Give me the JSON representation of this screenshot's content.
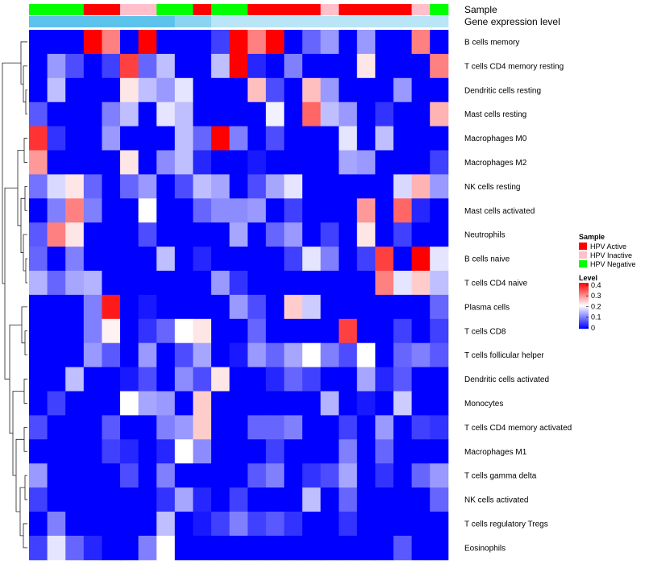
{
  "chart_data": {
    "type": "heatmap",
    "title": "",
    "row_labels": [
      "B cells memory",
      "T cells CD4 memory resting",
      "Dendritic cells resting",
      "Mast cells resting",
      "Macrophages M0",
      "Macrophages M2",
      "NK cells resting",
      "Mast cells activated",
      "Neutrophils",
      "B cells naive",
      "T cells CD4 naive",
      "Plasma cells",
      "T cells CD8",
      "T cells follicular helper",
      "Dendritic cells activated",
      "Monocytes",
      "T cells CD4 memory activated",
      "Macrophages M1",
      "T cells gamma delta",
      "NK cells activated",
      "T cells regulatory  Tregs",
      "Eosinophils"
    ],
    "n_columns": 23,
    "annotations": {
      "sample_label": "Sample",
      "gene_expression_label": "Gene expression level",
      "sample": [
        "HPV Negative",
        "HPV Negative",
        "HPV Negative",
        "HPV Active",
        "HPV Active",
        "HPV Inactive",
        "HPV Inactive",
        "HPV Negative",
        "HPV Negative",
        "HPV Active",
        "HPV Negative",
        "HPV Negative",
        "HPV Active",
        "HPV Active",
        "HPV Active",
        "HPV Active",
        "HPV Inactive",
        "HPV Active",
        "HPV Active",
        "HPV Active",
        "HPV Active",
        "HPV Inactive",
        "HPV Negative"
      ],
      "gene_expression": [
        0.3,
        0.3,
        0.3,
        0.3,
        0.3,
        0.3,
        0.3,
        0.3,
        0.2,
        0.2,
        0.1,
        0.1,
        0.1,
        0.1,
        0.1,
        0.1,
        0.1,
        0.1,
        0.1,
        0.1,
        0.1,
        0.1,
        0.1
      ]
    },
    "values": [
      [
        0.0,
        0.0,
        0.0,
        0.4,
        0.3,
        0.0,
        0.4,
        0.0,
        0.0,
        0.0,
        0.05,
        0.4,
        0.3,
        0.4,
        0.0,
        0.08,
        0.12,
        0.0,
        0.12,
        0.0,
        0.0,
        0.3,
        0.0
      ],
      [
        0.0,
        0.12,
        0.06,
        0.0,
        0.05,
        0.35,
        0.08,
        0.15,
        0.0,
        0.0,
        0.15,
        0.4,
        0.03,
        0.0,
        0.1,
        0.0,
        0.0,
        0.0,
        0.22,
        0.0,
        0.0,
        0.0,
        0.3
      ],
      [
        0.0,
        0.15,
        0.0,
        0.0,
        0.0,
        0.22,
        0.15,
        0.12,
        0.18,
        0.0,
        0.0,
        0.0,
        0.25,
        0.06,
        0.0,
        0.25,
        0.12,
        0.0,
        0.0,
        0.0,
        0.12,
        0.0,
        0.0
      ],
      [
        0.07,
        0.0,
        0.0,
        0.0,
        0.1,
        0.15,
        0.0,
        0.18,
        0.15,
        0.0,
        0.0,
        0.0,
        0.0,
        0.19,
        0.0,
        0.32,
        0.15,
        0.12,
        0.0,
        0.04,
        0.0,
        0.0,
        0.26
      ],
      [
        0.36,
        0.04,
        0.0,
        0.0,
        0.12,
        0.0,
        0.0,
        0.0,
        0.15,
        0.08,
        0.4,
        0.1,
        0.0,
        0.06,
        0.0,
        0.0,
        0.0,
        0.18,
        0.0,
        0.15,
        0.0,
        0.0,
        0.0
      ],
      [
        0.28,
        0.0,
        0.0,
        0.0,
        0.0,
        0.22,
        0.0,
        0.11,
        0.15,
        0.03,
        0.0,
        0.0,
        0.02,
        0.0,
        0.0,
        0.0,
        0.0,
        0.13,
        0.12,
        0.0,
        0.0,
        0.0,
        0.05
      ],
      [
        0.09,
        0.17,
        0.22,
        0.08,
        0.0,
        0.08,
        0.12,
        0.0,
        0.06,
        0.15,
        0.13,
        0.0,
        0.06,
        0.13,
        0.18,
        0.0,
        0.0,
        0.0,
        0.0,
        0.0,
        0.17,
        0.26,
        0.12
      ],
      [
        0.0,
        0.1,
        0.3,
        0.1,
        0.0,
        0.0,
        0.2,
        0.0,
        0.0,
        0.08,
        0.11,
        0.11,
        0.12,
        0.0,
        0.05,
        0.0,
        0.0,
        0.0,
        0.28,
        0.0,
        0.32,
        0.03,
        0.0
      ],
      [
        0.07,
        0.3,
        0.22,
        0.0,
        0.0,
        0.0,
        0.06,
        0.0,
        0.0,
        0.0,
        0.0,
        0.13,
        0.0,
        0.08,
        0.12,
        0.0,
        0.05,
        0.0,
        0.22,
        0.0,
        0.05,
        0.0,
        0.0
      ],
      [
        0.08,
        0.0,
        0.1,
        0.0,
        0.0,
        0.0,
        0.0,
        0.15,
        0.0,
        0.03,
        0.0,
        0.0,
        0.0,
        0.0,
        0.05,
        0.18,
        0.1,
        0.0,
        0.05,
        0.35,
        0.0,
        0.4,
        0.18
      ],
      [
        0.14,
        0.08,
        0.13,
        0.14,
        0.0,
        0.0,
        0.0,
        0.0,
        0.0,
        0.0,
        0.12,
        0.04,
        0.0,
        0.0,
        0.0,
        0.0,
        0.0,
        0.0,
        0.0,
        0.3,
        0.18,
        0.24,
        0.15
      ],
      [
        0.0,
        0.0,
        0.0,
        0.1,
        0.38,
        0.0,
        0.02,
        0.0,
        0.0,
        0.0,
        0.0,
        0.12,
        0.06,
        0.0,
        0.24,
        0.16,
        0.0,
        0.0,
        0.0,
        0.0,
        0.0,
        0.0,
        0.08
      ],
      [
        0.0,
        0.0,
        0.0,
        0.1,
        0.21,
        0.0,
        0.04,
        0.08,
        0.2,
        0.22,
        0.0,
        0.0,
        0.08,
        0.0,
        0.0,
        0.0,
        0.0,
        0.35,
        0.0,
        0.0,
        0.05,
        0.0,
        0.05
      ],
      [
        0.0,
        0.0,
        0.0,
        0.12,
        0.07,
        0.0,
        0.12,
        0.0,
        0.06,
        0.13,
        0.0,
        0.02,
        0.12,
        0.08,
        0.13,
        0.2,
        0.1,
        0.06,
        0.2,
        0.0,
        0.08,
        0.1,
        0.07
      ],
      [
        0.0,
        0.0,
        0.15,
        0.0,
        0.0,
        0.02,
        0.06,
        0.0,
        0.11,
        0.06,
        0.22,
        0.0,
        0.0,
        0.03,
        0.08,
        0.05,
        0.0,
        0.0,
        0.13,
        0.03,
        0.07,
        0.0,
        0.0
      ],
      [
        0.0,
        0.05,
        0.0,
        0.0,
        0.0,
        0.2,
        0.13,
        0.12,
        0.0,
        0.24,
        0.0,
        0.0,
        0.0,
        0.0,
        0.0,
        0.0,
        0.14,
        0.0,
        0.02,
        0.0,
        0.16,
        0.0,
        0.0
      ],
      [
        0.06,
        0.0,
        0.0,
        0.0,
        0.07,
        0.0,
        0.0,
        0.1,
        0.12,
        0.24,
        0.0,
        0.0,
        0.08,
        0.08,
        0.1,
        0.0,
        0.0,
        0.05,
        0.0,
        0.12,
        0.0,
        0.05,
        0.04
      ],
      [
        0.0,
        0.0,
        0.0,
        0.0,
        0.05,
        0.03,
        0.0,
        0.03,
        0.2,
        0.11,
        0.0,
        0.0,
        0.0,
        0.05,
        0.0,
        0.0,
        0.0,
        0.1,
        0.0,
        0.08,
        0.0,
        0.0,
        0.0
      ],
      [
        0.12,
        0.0,
        0.0,
        0.0,
        0.0,
        0.06,
        0.0,
        0.1,
        0.0,
        0.0,
        0.0,
        0.0,
        0.07,
        0.1,
        0.0,
        0.04,
        0.06,
        0.13,
        0.0,
        0.04,
        0.0,
        0.08,
        0.12
      ],
      [
        0.05,
        0.0,
        0.0,
        0.0,
        0.0,
        0.0,
        0.0,
        0.04,
        0.13,
        0.03,
        0.0,
        0.05,
        0.0,
        0.0,
        0.0,
        0.15,
        0.0,
        0.08,
        0.0,
        0.0,
        0.0,
        0.0,
        0.08
      ],
      [
        0.0,
        0.1,
        0.0,
        0.0,
        0.0,
        0.0,
        0.0,
        0.15,
        0.0,
        0.02,
        0.05,
        0.1,
        0.05,
        0.07,
        0.04,
        0.0,
        0.0,
        0.04,
        0.0,
        0.0,
        0.0,
        0.0,
        0.0
      ],
      [
        0.05,
        0.18,
        0.08,
        0.03,
        0.0,
        0.0,
        0.1,
        0.2,
        0.0,
        0.0,
        0.0,
        0.0,
        0.0,
        0.0,
        0.0,
        0.0,
        0.0,
        0.0,
        0.0,
        0.0,
        0.07,
        0.0,
        0.0
      ]
    ],
    "color_scale": {
      "min": 0,
      "max": 0.4,
      "low_color": "#0000ff",
      "mid_color": "#ffffff",
      "high_color": "#ff0000",
      "mid_value": 0.2
    },
    "legend": {
      "sample_title": "Sample",
      "sample_entries": [
        {
          "label": "HPV Active",
          "color": "#ff0000"
        },
        {
          "label": "HPV Inactive",
          "color": "#ffc0cb"
        },
        {
          "label": "HPV Negative",
          "color": "#00ff00"
        }
      ],
      "level_title": "Level",
      "level_ticks": [
        "0.4",
        "0.3",
        "0.2",
        "0.1",
        "0"
      ],
      "placement": "right"
    },
    "gene_expression_colors": {
      "low": "#e8f6fc",
      "high": "#5bc2ec"
    }
  }
}
